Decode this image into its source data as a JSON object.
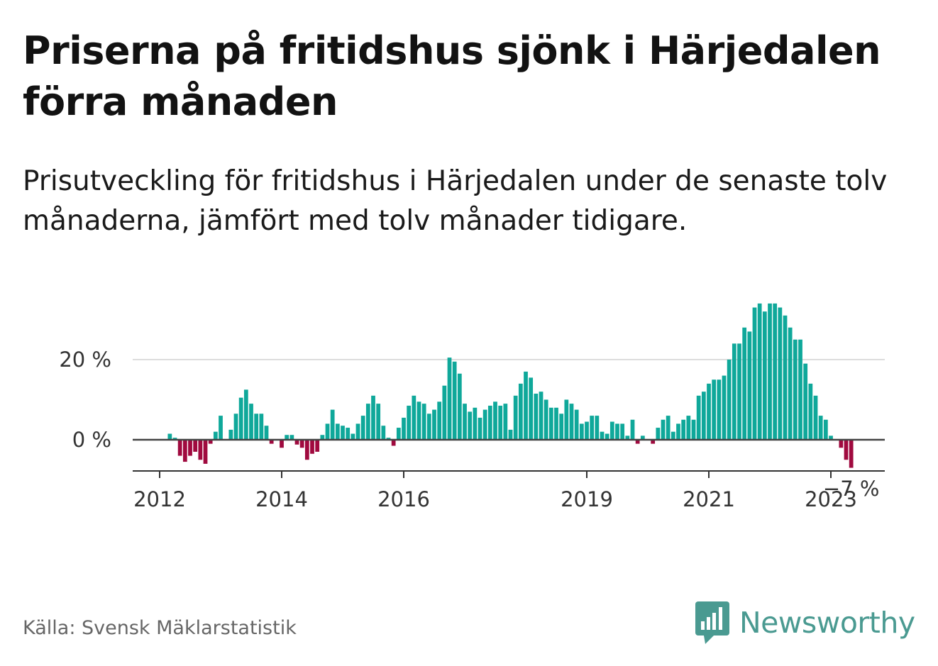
{
  "title": "Priserna på fritidshus sjönk i Härjedalen förra månaden",
  "subtitle": "Prisutveckling för fritidshus i Härjedalen under de senaste tolv månaderna, jämfört med tolv månader tidigare.",
  "source": "Källa: Svensk Mäklarstatistik",
  "brand": "Newsworthy",
  "colors": {
    "positive": "#0fa89a",
    "negative": "#a00a3f",
    "brand": "#4a9a91"
  },
  "chart_data": {
    "type": "bar",
    "title": "Priserna på fritidshus sjönk i Härjedalen förra månaden",
    "xlabel": "",
    "ylabel": "",
    "yticks": [
      0,
      20
    ],
    "ytick_labels": [
      "0 %",
      "20 %"
    ],
    "ylim": [
      -8,
      37
    ],
    "xticks": [
      2012,
      2014,
      2016,
      2019,
      2021,
      2023
    ],
    "xtick_labels": [
      "2012",
      "2014",
      "2016",
      "2019",
      "2021",
      "2023"
    ],
    "x_start": "2011-08",
    "grid": true,
    "last_value_label": "−7 %",
    "values": [
      0,
      0,
      0,
      0,
      0,
      0,
      0,
      1.5,
      0.5,
      -4,
      -5.5,
      -4,
      -3,
      -5,
      -6,
      -1,
      2,
      6,
      0,
      2.5,
      6.5,
      10.5,
      12.5,
      9,
      6.5,
      6.5,
      3.5,
      -1,
      0,
      -2,
      1.2,
      1.2,
      -1.2,
      -2,
      -5,
      -3.5,
      -3,
      1.2,
      4,
      7.5,
      4,
      3.5,
      3,
      1.5,
      4,
      6,
      9,
      11,
      9,
      3.5,
      0.5,
      -1.5,
      3,
      5.5,
      8.5,
      11,
      9.5,
      9,
      6.5,
      7.5,
      9.5,
      13.5,
      20.5,
      19.5,
      16.5,
      9,
      7,
      8,
      5.5,
      7.5,
      8.5,
      9.5,
      8.5,
      9,
      2.5,
      11,
      14,
      17,
      15.5,
      11.5,
      12,
      10,
      8,
      8,
      6.5,
      10,
      9,
      7.5,
      4,
      4.5,
      6,
      6,
      2,
      1.5,
      4.5,
      4,
      4,
      1,
      5,
      -1,
      1,
      0,
      -1,
      3,
      5,
      6,
      2,
      4,
      5,
      6,
      5,
      11,
      12,
      14,
      15,
      15,
      16,
      20,
      24,
      24,
      28,
      27,
      33,
      34,
      32,
      34,
      34,
      33,
      31,
      28,
      25,
      25,
      19,
      14,
      11,
      6,
      5,
      1,
      0,
      -2,
      -5,
      -7
    ]
  }
}
